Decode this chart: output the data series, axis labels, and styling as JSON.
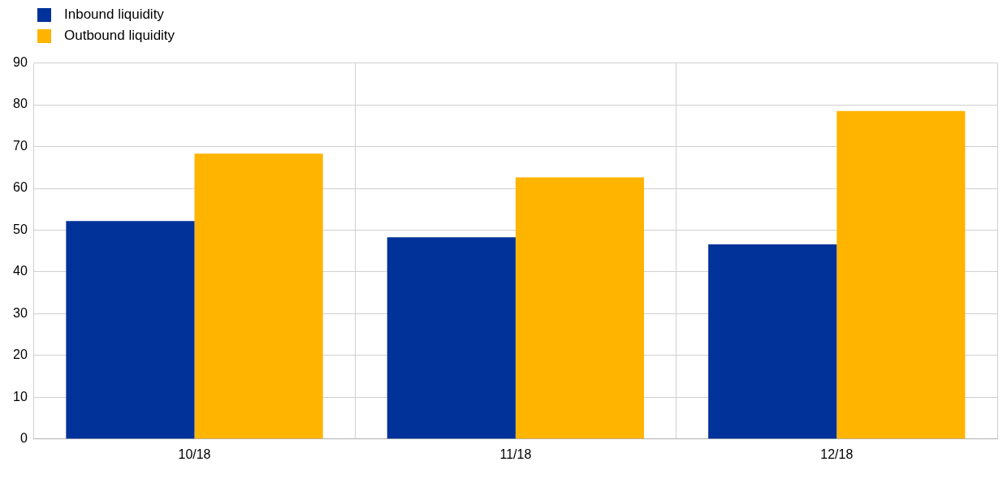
{
  "chart_data": {
    "type": "bar",
    "categories": [
      "10/18",
      "11/18",
      "12/18"
    ],
    "series": [
      {
        "name": "Inbound liquidity",
        "color": "#003299",
        "values": [
          52.2,
          48.3,
          46.6
        ]
      },
      {
        "name": "Outbound liquidity",
        "color": "#ffb400",
        "values": [
          68.3,
          62.6,
          78.5
        ]
      }
    ],
    "ylim": [
      0,
      90
    ],
    "yticks": [
      0,
      10,
      20,
      30,
      40,
      50,
      60,
      70,
      80,
      90
    ],
    "grid": true,
    "legend": "top left"
  }
}
